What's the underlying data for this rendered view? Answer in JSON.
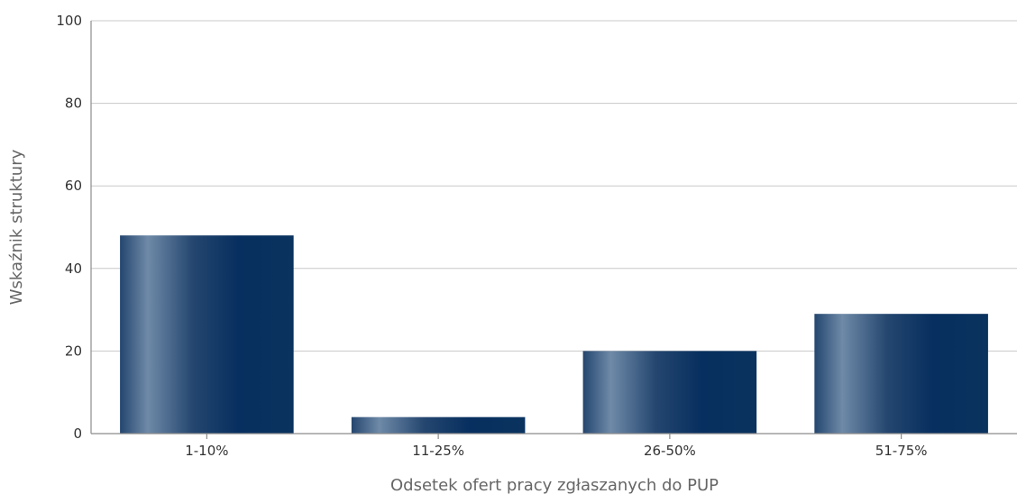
{
  "chart_data": {
    "type": "bar",
    "categories": [
      "1-10%",
      "11-25%",
      "26-50%",
      "51-75%"
    ],
    "values": [
      48,
      4,
      20,
      29
    ],
    "title": "",
    "xlabel": "Odsetek ofert pracy zgłaszanych do PUP",
    "ylabel": "Wskaźnik struktury",
    "ylim": [
      0,
      100
    ],
    "yticks": [
      0,
      20,
      40,
      60,
      80,
      100
    ],
    "grid": true,
    "legend": "none",
    "colors": {
      "bar_light": "#6f8aa8",
      "bar_mid": "#24466f",
      "bar_dark": "#072f5f",
      "grid": "#c8c8c8",
      "axis": "#8c8c8c"
    }
  }
}
